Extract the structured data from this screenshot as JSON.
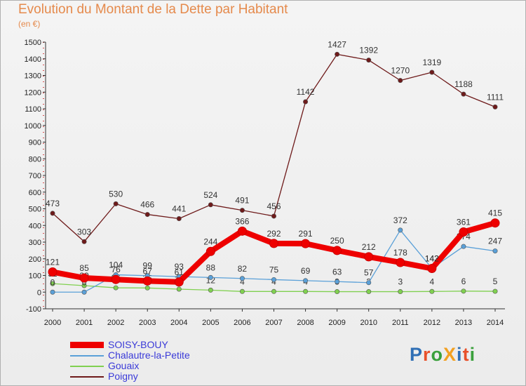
{
  "title": "Evolution du Montant de la Dette par Habitant",
  "subtitle": "(en €)",
  "logo_text": "ProXiti",
  "logo_colors": [
    "#2f6fb5",
    "#e8502a",
    "#3aa03c",
    "#f2a020",
    "#2f6fb5",
    "#e8502a",
    "#3aa03c"
  ],
  "chart_data": {
    "type": "line",
    "x": [
      "2000",
      "2001",
      "2002",
      "2003",
      "2004",
      "2005",
      "2006",
      "2007",
      "2008",
      "2009",
      "2010",
      "2011",
      "2012",
      "2013",
      "2014"
    ],
    "ylim": [
      -100,
      1500
    ],
    "yticks": [
      "-100",
      "0",
      "100",
      "200",
      "300",
      "400",
      "500",
      "600",
      "700",
      "800",
      "900",
      "1000",
      "1100",
      "1200",
      "1300",
      "1400",
      "1500"
    ],
    "grid": false,
    "legend_position": "bottom-left",
    "series": [
      {
        "name": "Poigny",
        "color": "#6e1a1a",
        "values": [
          473,
          303,
          530,
          466,
          441,
          524,
          491,
          456,
          1142,
          1427,
          1392,
          1270,
          1319,
          1188,
          1111
        ],
        "labels": [
          "473",
          "303",
          "530",
          "466",
          "441",
          "524",
          "491",
          "456",
          "1142",
          "1427",
          "1392",
          "1270",
          "1319",
          "1188",
          "1111"
        ]
      },
      {
        "name": "Gouaix",
        "color": "#80d050",
        "values": [
          51,
          39,
          26,
          25,
          18,
          12,
          4,
          4,
          4,
          3,
          3,
          3,
          4,
          6,
          5
        ],
        "labels": [
          "51",
          "39",
          "26",
          "25",
          "18",
          "12",
          "4",
          "4",
          "4",
          "3",
          "3",
          "3",
          "4",
          "6",
          "5"
        ]
      },
      {
        "name": "Chalautre-la-Petite",
        "color": "#5aa0d8",
        "values": [
          0,
          0,
          104,
          99,
          93,
          88,
          82,
          75,
          69,
          63,
          57,
          372,
          143,
          274,
          247
        ],
        "labels": [
          "0",
          "0",
          "104",
          "99",
          "93",
          "88",
          "82",
          "75",
          "69",
          "63",
          "57",
          "372",
          "143",
          "274",
          "247"
        ]
      },
      {
        "name": "SOISY-BOUY",
        "color": "#ee0000",
        "values": [
          121,
          85,
          76,
          67,
          61,
          244,
          366,
          292,
          291,
          250,
          212,
          178,
          142,
          361,
          415
        ],
        "labels": [
          "121",
          "85",
          "76",
          "67",
          "61",
          "244",
          "366",
          "292",
          "291",
          "250",
          "212",
          "178",
          "142",
          "361",
          "415"
        ]
      }
    ]
  },
  "legend": [
    {
      "label": "SOISY-BOUY",
      "color": "#ee0000"
    },
    {
      "label": "Chalautre-la-Petite",
      "color": "#5aa0d8"
    },
    {
      "label": "Gouaix",
      "color": "#80d050"
    },
    {
      "label": "Poigny",
      "color": "#6e1a1a"
    }
  ]
}
